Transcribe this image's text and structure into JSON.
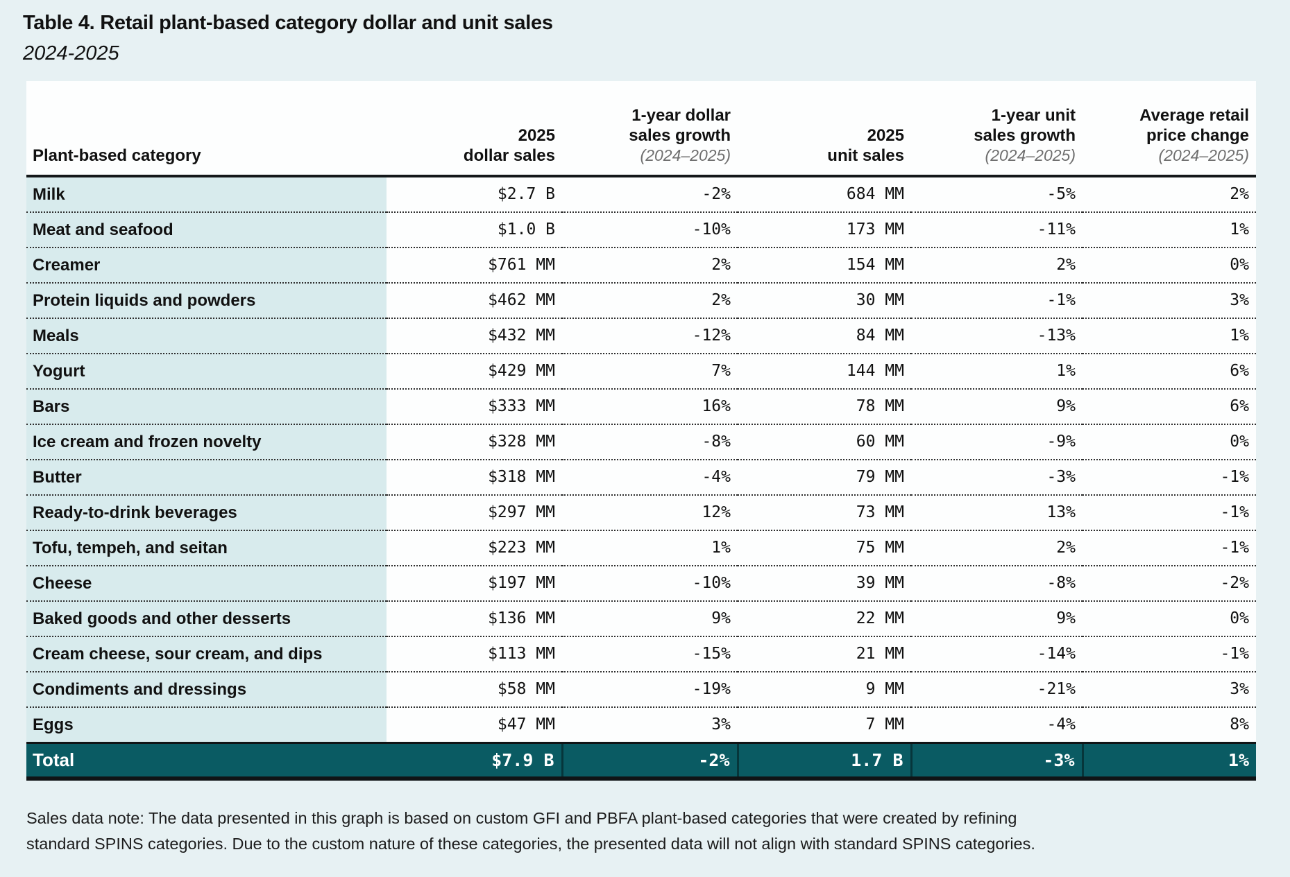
{
  "title": "Table 4. Retail plant-based category dollar and unit sales",
  "subtitle": "2024-2025",
  "table": {
    "columns": [
      {
        "lines": [
          "Plant-based category"
        ],
        "sub": ""
      },
      {
        "lines": [
          "2025",
          "dollar sales"
        ],
        "sub": ""
      },
      {
        "lines": [
          "1-year dollar",
          "sales growth"
        ],
        "sub": "(2024–2025)"
      },
      {
        "lines": [
          "2025",
          "unit sales"
        ],
        "sub": ""
      },
      {
        "lines": [
          "1-year unit",
          "sales growth"
        ],
        "sub": "(2024–2025)"
      },
      {
        "lines": [
          "Average retail",
          "price change"
        ],
        "sub": "(2024–2025)"
      }
    ],
    "rows": [
      [
        "Milk",
        "$2.7 B",
        "-2%",
        "684 MM",
        "-5%",
        "2%"
      ],
      [
        "Meat and seafood",
        "$1.0 B",
        "-10%",
        "173 MM",
        "-11%",
        "1%"
      ],
      [
        "Creamer",
        "$761 MM",
        "2%",
        "154 MM",
        "2%",
        "0%"
      ],
      [
        "Protein liquids and powders",
        "$462 MM",
        "2%",
        "30 MM",
        "-1%",
        "3%"
      ],
      [
        "Meals",
        "$432 MM",
        "-12%",
        "84 MM",
        "-13%",
        "1%"
      ],
      [
        "Yogurt",
        "$429 MM",
        "7%",
        "144 MM",
        "1%",
        "6%"
      ],
      [
        "Bars",
        "$333 MM",
        "16%",
        "78 MM",
        "9%",
        "6%"
      ],
      [
        "Ice cream and frozen novelty",
        "$328 MM",
        "-8%",
        "60 MM",
        "-9%",
        "0%"
      ],
      [
        "Butter",
        "$318 MM",
        "-4%",
        "79 MM",
        "-3%",
        "-1%"
      ],
      [
        "Ready-to-drink beverages",
        "$297 MM",
        "12%",
        "73 MM",
        "13%",
        "-1%"
      ],
      [
        "Tofu, tempeh, and seitan",
        "$223 MM",
        "1%",
        "75 MM",
        "2%",
        "-1%"
      ],
      [
        "Cheese",
        "$197 MM",
        "-10%",
        "39 MM",
        "-8%",
        "-2%"
      ],
      [
        "Baked goods and other desserts",
        "$136 MM",
        "9%",
        "22 MM",
        "9%",
        "0%"
      ],
      [
        "Cream cheese, sour cream, and dips",
        "$113 MM",
        "-15%",
        "21 MM",
        "-14%",
        "-1%"
      ],
      [
        "Condiments and dressings",
        "$58 MM",
        "-19%",
        "9 MM",
        "-21%",
        "3%"
      ],
      [
        "Eggs",
        "$47 MM",
        "3%",
        "7 MM",
        "-4%",
        "8%"
      ]
    ],
    "total": [
      "Total",
      "$7.9 B",
      "-2%",
      "1.7 B",
      "-3%",
      "1%"
    ]
  },
  "note": "Sales data note: The data presented in this graph is based on custom GFI and PBFA plant-based categories that were created by refining standard SPINS categories. Due to the custom nature of these categories, the presented data will not align with standard SPINS categories.",
  "colors": {
    "page_background": "#e7f1f3",
    "category_column_background": "#d8ebed",
    "total_row_background": "#0a5b63",
    "header_sub_text": "#6f6f6f"
  },
  "chart_data": {
    "type": "table",
    "title": "Table 4. Retail plant-based category dollar and unit sales",
    "subtitle": "2024-2025",
    "columns": [
      "Plant-based category",
      "2025 dollar sales",
      "1-year dollar sales growth (2024–2025)",
      "2025 unit sales",
      "1-year unit sales growth (2024–2025)",
      "Average retail price change (2024–2025)"
    ],
    "rows": [
      [
        "Milk",
        "$2.7 B",
        "-2%",
        "684 MM",
        "-5%",
        "2%"
      ],
      [
        "Meat and seafood",
        "$1.0 B",
        "-10%",
        "173 MM",
        "-11%",
        "1%"
      ],
      [
        "Creamer",
        "$761 MM",
        "2%",
        "154 MM",
        "2%",
        "0%"
      ],
      [
        "Protein liquids and powders",
        "$462 MM",
        "2%",
        "30 MM",
        "-1%",
        "3%"
      ],
      [
        "Meals",
        "$432 MM",
        "-12%",
        "84 MM",
        "-13%",
        "1%"
      ],
      [
        "Yogurt",
        "$429 MM",
        "7%",
        "144 MM",
        "1%",
        "6%"
      ],
      [
        "Bars",
        "$333 MM",
        "16%",
        "78 MM",
        "9%",
        "6%"
      ],
      [
        "Ice cream and frozen novelty",
        "$328 MM",
        "-8%",
        "60 MM",
        "-9%",
        "0%"
      ],
      [
        "Butter",
        "$318 MM",
        "-4%",
        "79 MM",
        "-3%",
        "-1%"
      ],
      [
        "Ready-to-drink beverages",
        "$297 MM",
        "12%",
        "73 MM",
        "13%",
        "-1%"
      ],
      [
        "Tofu, tempeh, and seitan",
        "$223 MM",
        "1%",
        "75 MM",
        "2%",
        "-1%"
      ],
      [
        "Cheese",
        "$197 MM",
        "-10%",
        "39 MM",
        "-8%",
        "-2%"
      ],
      [
        "Baked goods and other desserts",
        "$136 MM",
        "9%",
        "22 MM",
        "9%",
        "0%"
      ],
      [
        "Cream cheese, sour cream, and dips",
        "$113 MM",
        "-15%",
        "21 MM",
        "-14%",
        "-1%"
      ],
      [
        "Condiments and dressings",
        "$58 MM",
        "-19%",
        "9 MM",
        "-21%",
        "3%"
      ],
      [
        "Eggs",
        "$47 MM",
        "3%",
        "7 MM",
        "-4%",
        "8%"
      ]
    ],
    "total_row": [
      "Total",
      "$7.9 B",
      "-2%",
      "1.7 B",
      "-3%",
      "1%"
    ],
    "note": "Sales data note: The data presented in this graph is based on custom GFI and PBFA plant-based categories that were created by refining standard SPINS categories. Due to the custom nature of these categories, the presented data will not align with standard SPINS categories."
  }
}
